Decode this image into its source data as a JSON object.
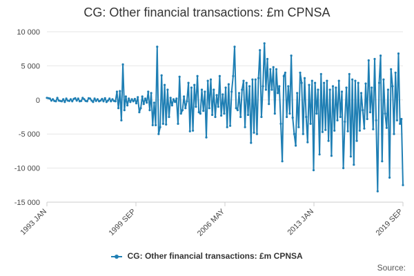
{
  "title": "CG: Other financial transactions: £m CPNSA",
  "source_label": "Source:",
  "colors": {
    "series": "#1f7fb4",
    "grid": "#e6e6e6",
    "axis": "#cccccc"
  },
  "chart_data": {
    "type": "line",
    "title": "CG: Other financial transactions: £m CPNSA",
    "xlabel": "",
    "ylabel": "",
    "ylim": [
      -15000,
      10000
    ],
    "yticks": [
      10000,
      5000,
      0,
      -5000,
      -10000,
      -15000
    ],
    "ytick_labels": [
      "10 000",
      "5 000",
      "0",
      "-5 000",
      "-10 000",
      "-15 000"
    ],
    "xlim": [
      "1993 JAN",
      "2019 SEP"
    ],
    "xticks": [
      "1993 JAN",
      "1999 SEP",
      "2006 MAY",
      "2013 JAN",
      "2019 SEP"
    ],
    "grid": "horizontal",
    "legend": "bottom",
    "x_start": "1993 JAN",
    "x_end": "2019 SEP",
    "series": [
      {
        "name": "CG: Other financial transactions: £m CPNSA",
        "values": [
          300,
          250,
          200,
          -100,
          100,
          -150,
          -200,
          300,
          -100,
          -150,
          -200,
          100,
          -300,
          200,
          -100,
          -150,
          100,
          -200,
          150,
          250,
          -100,
          200,
          -200,
          -150,
          300,
          100,
          -150,
          -200,
          250,
          200,
          -100,
          -300,
          200,
          -150,
          100,
          -200,
          -100,
          150,
          -200,
          250,
          -300,
          -100,
          200,
          -200,
          100,
          -150,
          -200,
          1200,
          -1200,
          1300,
          -3000,
          5200,
          -1500,
          500,
          -800,
          200,
          -300,
          100,
          -200,
          150,
          -500,
          400,
          -1800,
          -1200,
          500,
          -600,
          200,
          -400,
          1200,
          -1500,
          1000,
          -3700,
          -400,
          -3700,
          7800,
          -5000,
          -4000,
          3600,
          -3500,
          2200,
          -3600,
          1500,
          -2500,
          300,
          -800,
          100,
          -300,
          200,
          -3500,
          3400,
          -2000,
          -1500,
          500,
          -1200,
          -200,
          2500,
          -4600,
          1800,
          -4500,
          2200,
          -1000,
          3500,
          -1800,
          -2000,
          1500,
          -1600,
          1200,
          -5500,
          2800,
          -1200,
          3000,
          -2200,
          1500,
          -2500,
          700,
          -1000,
          3500,
          -2300,
          800,
          -2000,
          1800,
          -4000,
          2300,
          -3800,
          1200,
          3500,
          7800,
          -1200,
          -1500,
          1000,
          -2500,
          1500,
          2800,
          -4000,
          2500,
          -2200,
          2000,
          -6300,
          3000,
          -4800,
          3000,
          -5000,
          3200,
          7300,
          -2500,
          2000,
          8300,
          1500,
          6000,
          -600,
          4500,
          1500,
          4800,
          -2000,
          4500,
          1000,
          2000,
          -3500,
          -9000,
          3500,
          4000,
          -2500,
          2000,
          -2000,
          6500,
          -2600,
          -5000,
          -6700,
          1000,
          -4000,
          4000,
          2500,
          -5000,
          3200,
          -2500,
          -6200,
          2200,
          -3500,
          2800,
          -10300,
          2500,
          -2000,
          1500,
          -8000,
          3800,
          -4700,
          2500,
          -4400,
          2800,
          -6000,
          1500,
          -8200,
          2000,
          -4500,
          1800,
          -3000,
          2800,
          -2500,
          1200,
          -10000,
          -3200,
          1800,
          -4600,
          3800,
          -8300,
          3000,
          -9500,
          2800,
          -6000,
          2500,
          -4500,
          1000,
          -1500,
          -4200,
          2400,
          -2800,
          5800,
          -1800,
          1800,
          -4300,
          6000,
          -3000,
          -13400,
          2500,
          6500,
          -9000,
          3000,
          -2000,
          -4100,
          1500,
          -11400,
          4500,
          2000,
          -5000,
          4000,
          -3000,
          6800,
          -3500,
          -2800,
          -12500
        ]
      }
    ]
  }
}
